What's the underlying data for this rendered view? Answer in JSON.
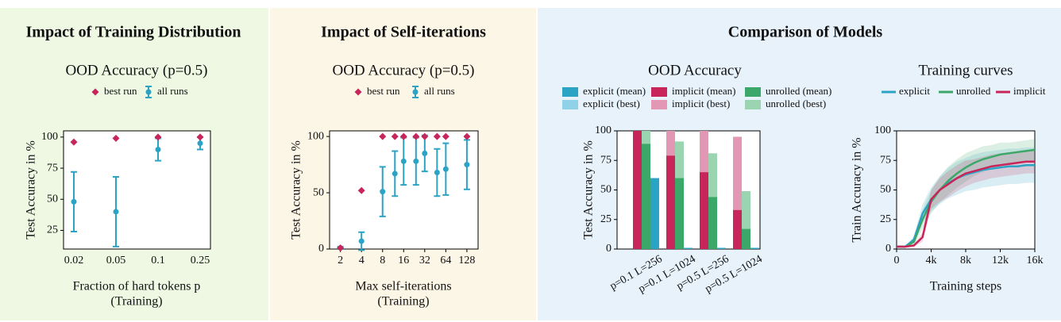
{
  "panels": [
    "Impact of Training Distribution",
    "Impact of Self-iterations",
    "Comparison of Models"
  ],
  "chart_data": [
    {
      "type": "errorbar",
      "title": "OOD Accuracy (p=0.5)",
      "x_label": [
        "Fraction of hard tokens p",
        "(Training)"
      ],
      "y_label": "Test Accuracy in %",
      "categories": [
        "0.02",
        "0.05",
        "0.1",
        "0.25"
      ],
      "series": [
        {
          "name": "best run",
          "color": "#c8255a",
          "marker": "diamond",
          "values": [
            96,
            99,
            100,
            100
          ]
        },
        {
          "name": "all runs",
          "color": "#2ba3c4",
          "marker": "circle",
          "values": [
            48,
            40,
            90,
            95
          ],
          "errors": [
            24,
            28,
            9,
            5
          ]
        }
      ],
      "ylim": [
        10,
        105
      ],
      "yticks": [
        25,
        50,
        75,
        100
      ]
    },
    {
      "type": "errorbar",
      "title": "OOD Accuracy (p=0.5)",
      "x_label": [
        "Max self-iterations",
        "(Training)"
      ],
      "y_label": "Test Accuracy in %",
      "x": [
        2,
        4,
        8,
        12,
        16,
        24,
        32,
        48,
        64,
        128
      ],
      "xscale": "log",
      "xlim": [
        1.4,
        185
      ],
      "xticks": [
        2,
        4,
        8,
        16,
        32,
        64,
        128
      ],
      "series": [
        {
          "name": "best run",
          "color": "#c8255a",
          "marker": "diamond",
          "values": [
            1,
            52,
            100,
            100,
            100,
            100,
            100,
            100,
            100,
            100
          ]
        },
        {
          "name": "all runs",
          "color": "#2ba3c4",
          "marker": "circle",
          "values": [
            1,
            7,
            51,
            67,
            78,
            78,
            85,
            68,
            71,
            75
          ],
          "errors": [
            1,
            8,
            22,
            20,
            21,
            21,
            16,
            21,
            23,
            22
          ]
        }
      ],
      "ylim": [
        0,
        105
      ],
      "yticks": [
        0,
        50,
        100
      ]
    },
    {
      "type": "bar",
      "title": "OOD Accuracy",
      "y_label": "Test Accuracy in %",
      "categories": [
        "p=0.1 L=256",
        "p=0.1 L=1024",
        "p=0.5 L=256",
        "p=0.5 L=1024"
      ],
      "series": [
        {
          "name": "explicit (mean)",
          "color": "#2ba3c4",
          "values": [
            60,
            1,
            1,
            1
          ]
        },
        {
          "name": "explicit (best)",
          "color": "#8fd2e8",
          "values": [
            60,
            1,
            1,
            1
          ]
        },
        {
          "name": "implicit (mean)",
          "color": "#c8255a",
          "values": [
            100,
            79,
            65,
            33
          ]
        },
        {
          "name": "implicit (best)",
          "color": "#e298b4",
          "values": [
            100,
            100,
            100,
            95
          ]
        },
        {
          "name": "unrolled (mean)",
          "color": "#3ba86a",
          "values": [
            89,
            60,
            44,
            17
          ]
        },
        {
          "name": "unrolled (best)",
          "color": "#9bd4b0",
          "values": [
            100,
            91,
            81,
            49
          ]
        }
      ],
      "ylim": [
        0,
        100
      ],
      "yticks": [
        0,
        25,
        50,
        75,
        100
      ]
    },
    {
      "type": "line",
      "title": "Training curves",
      "x_label": [
        "Training steps"
      ],
      "y_label": "Train Accuracy in %",
      "x": [
        0,
        1000,
        2000,
        3000,
        4000,
        5000,
        6000,
        7000,
        8000,
        9000,
        10000,
        11000,
        12000,
        13000,
        14000,
        15000,
        16000
      ],
      "xlim": [
        0,
        16000
      ],
      "xticks": [
        0,
        {
          "value": 4000,
          "label": "4k"
        },
        {
          "value": 8000,
          "label": "8k"
        },
        {
          "value": 12000,
          "label": "12k"
        },
        {
          "value": 16000,
          "label": "16k"
        }
      ],
      "ylim": [
        0,
        100
      ],
      "yticks": [
        0,
        25,
        50,
        75,
        100
      ],
      "series": [
        {
          "name": "explicit",
          "color": "#2ba3c4",
          "values": [
            2,
            2,
            8,
            30,
            42,
            50,
            56,
            60,
            63,
            65,
            67,
            68,
            69,
            70,
            70,
            71,
            71
          ],
          "errors": [
            0,
            0,
            3,
            8,
            10,
            12,
            13,
            14,
            14,
            15,
            15,
            15,
            15,
            15,
            15,
            15,
            15
          ]
        },
        {
          "name": "unrolled",
          "color": "#3ba86a",
          "values": [
            2,
            2,
            6,
            25,
            40,
            50,
            58,
            64,
            69,
            73,
            76,
            78,
            80,
            81,
            82,
            83,
            84
          ],
          "errors": [
            0,
            0,
            3,
            8,
            10,
            11,
            12,
            12,
            12,
            11,
            11,
            10,
            10,
            9,
            9,
            9,
            9
          ]
        },
        {
          "name": "implicit",
          "color": "#c8255a",
          "values": [
            2,
            2,
            3,
            10,
            42,
            50,
            55,
            60,
            64,
            66,
            68,
            70,
            71,
            72,
            73,
            74,
            74
          ],
          "errors": [
            0,
            0,
            1,
            4,
            8,
            10,
            11,
            11,
            11,
            10,
            10,
            10,
            10,
            10,
            10,
            10,
            10
          ]
        }
      ]
    }
  ]
}
